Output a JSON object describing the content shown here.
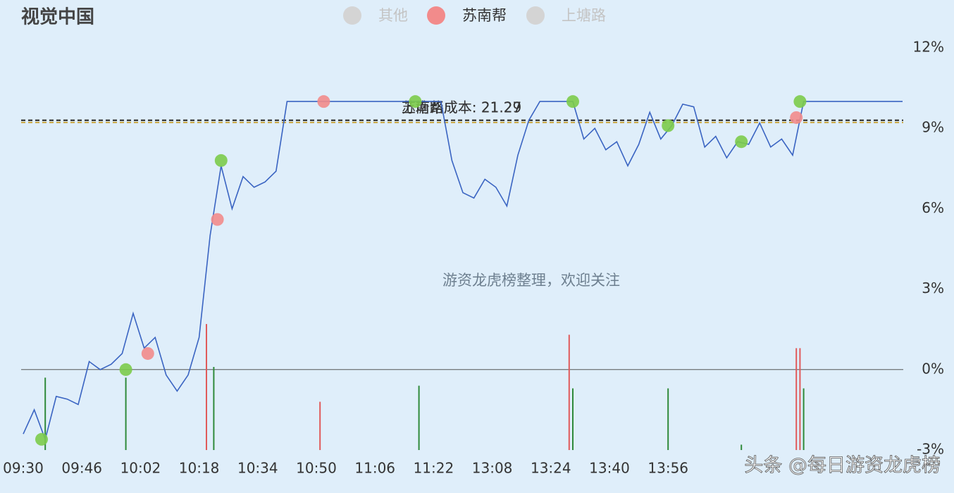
{
  "chart_data": {
    "type": "line",
    "title": "视觉中国",
    "watermark": "游资龙虎榜整理，欢迎关注",
    "footer": "头条 @每日游资龙虎榜",
    "legend": [
      {
        "name": "其他",
        "color": "#d4d4d4"
      },
      {
        "name": "苏南帮",
        "color": "#f28b8b"
      },
      {
        "name": "上塘路",
        "color": "#d4d4d4"
      }
    ],
    "ylim": [
      -3,
      12
    ],
    "yticks": [
      {
        "value": -3,
        "label": "-3%"
      },
      {
        "value": 0,
        "label": "0%"
      },
      {
        "value": 3,
        "label": "3%"
      },
      {
        "value": 6,
        "label": "6%"
      },
      {
        "value": 9,
        "label": "9%"
      },
      {
        "value": 12,
        "label": "12%"
      }
    ],
    "xticks": [
      "09:30",
      "09:46",
      "10:02",
      "10:18",
      "10:34",
      "10:50",
      "11:06",
      "11:22",
      "13:08",
      "13:24",
      "13:40",
      "13:56"
    ],
    "color": "#3a64c2",
    "x": [
      "09:30",
      "09:33",
      "09:36",
      "09:39",
      "09:42",
      "09:45",
      "09:48",
      "09:51",
      "09:54",
      "09:57",
      "10:00",
      "10:03",
      "10:06",
      "10:09",
      "10:12",
      "10:15",
      "10:18",
      "10:21",
      "10:24",
      "10:27",
      "10:30",
      "10:33",
      "10:36",
      "10:39",
      "10:42",
      "10:45",
      "10:48",
      "10:51",
      "10:54",
      "10:57",
      "11:00",
      "11:03",
      "11:06",
      "11:09",
      "11:12",
      "11:15",
      "11:18",
      "11:21",
      "11:24",
      "11:27",
      "13:00",
      "13:03",
      "13:06",
      "13:09",
      "13:12",
      "13:15",
      "13:18",
      "13:21",
      "13:24",
      "13:27",
      "13:30",
      "13:33",
      "13:36",
      "13:39",
      "13:42",
      "13:45",
      "13:48",
      "13:51",
      "13:54",
      "13:57",
      "14:00",
      "14:03",
      "14:06",
      "14:09",
      "14:12",
      "14:15",
      "14:18",
      "14:21",
      "14:24",
      "14:27",
      "14:30",
      "14:33",
      "14:36",
      "14:39",
      "14:42",
      "14:45",
      "14:48",
      "14:51",
      "14:54",
      "14:57",
      "15:00"
    ],
    "values": [
      -2.4,
      -1.5,
      -2.6,
      -1.0,
      -1.1,
      -1.3,
      0.3,
      0.0,
      0.2,
      0.6,
      2.1,
      0.8,
      1.2,
      -0.2,
      -0.8,
      -0.2,
      1.2,
      5.0,
      7.6,
      6.0,
      7.2,
      6.8,
      7.0,
      7.4,
      10.0,
      10.0,
      10.0,
      10.0,
      10.0,
      10.0,
      10.0,
      10.0,
      10.0,
      10.0,
      10.0,
      10.0,
      10.0,
      10.0,
      10.0,
      7.8,
      6.6,
      6.4,
      7.1,
      6.8,
      6.1,
      8.0,
      9.3,
      10.0,
      10.0,
      10.0,
      10.0,
      8.6,
      9.0,
      8.2,
      8.5,
      7.6,
      8.4,
      9.6,
      8.6,
      9.1,
      9.9,
      9.8,
      8.3,
      8.7,
      7.9,
      8.5,
      8.4,
      9.2,
      8.3,
      8.6,
      8.0,
      10.0,
      10.0,
      10.0,
      10.0,
      10.0,
      10.0,
      10.0,
      10.0,
      10.0,
      10.0
    ],
    "markers": [
      {
        "color": "#f28b8b",
        "x": [
          "10:04",
          "10:23",
          "10:52",
          "14:31"
        ],
        "values": [
          0.6,
          5.6,
          10.0,
          9.4
        ]
      },
      {
        "color": "#7ccb4a",
        "x": [
          "09:35",
          "09:58",
          "10:24",
          "11:17",
          "13:30",
          "13:56",
          "14:16",
          "14:32"
        ],
        "values": [
          -2.6,
          0.0,
          7.8,
          10.0,
          10.0,
          9.1,
          8.5,
          10.0
        ]
      }
    ],
    "bars": [
      {
        "color": "#e05a5a",
        "x": [
          "10:20",
          "10:51",
          "13:29",
          "14:31",
          "14:32"
        ],
        "values": [
          1.7,
          -1.2,
          1.3,
          0.8,
          0.8
        ]
      },
      {
        "color": "#2f8a3a",
        "x": [
          "09:36",
          "09:58",
          "10:22",
          "11:18",
          "13:30",
          "13:56",
          "14:16",
          "14:33"
        ],
        "values": [
          -0.3,
          -0.3,
          0.1,
          -0.6,
          -0.7,
          -0.7,
          -2.8,
          -0.7
        ]
      }
    ],
    "reference_lines": [
      {
        "label": "苏南帮成本: 21.29",
        "value": 9.3,
        "color": "#222222"
      },
      {
        "label": "上塘路成本: 21.27",
        "value": 9.22,
        "color": "#c9a640"
      }
    ]
  }
}
